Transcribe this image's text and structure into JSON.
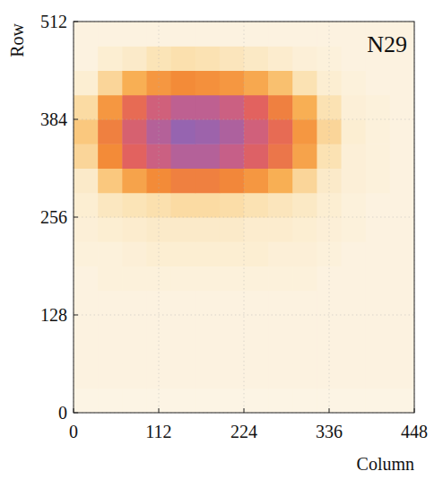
{
  "chart_data": {
    "type": "heatmap",
    "annotation": "N29",
    "xlabel": "Column",
    "ylabel": "Row",
    "xlim": [
      0,
      448
    ],
    "ylim": [
      0,
      512
    ],
    "xticks": [
      0,
      112,
      224,
      336,
      448
    ],
    "yticks": [
      0,
      128,
      256,
      384,
      512
    ],
    "grid": true,
    "x_edges": [
      0,
      32,
      64,
      96,
      128,
      160,
      192,
      224,
      256,
      288,
      320,
      352,
      384,
      416,
      448
    ],
    "y_edges": [
      0,
      32,
      64,
      96,
      128,
      160,
      192,
      224,
      256,
      288,
      320,
      352,
      384,
      416,
      448,
      480,
      512
    ],
    "cells": [
      [
        4,
        4,
        4,
        4,
        4,
        4,
        4,
        4,
        4,
        4,
        4,
        4,
        4,
        4
      ],
      [
        5,
        5,
        5,
        5,
        5,
        5,
        5,
        5,
        5,
        5,
        5,
        5,
        5,
        5
      ],
      [
        5,
        5,
        5,
        5,
        5,
        5,
        5,
        5,
        5,
        5,
        5,
        5,
        5,
        5
      ],
      [
        5,
        5,
        5,
        5,
        5,
        5,
        5,
        5,
        5,
        5,
        5,
        5,
        5,
        5
      ],
      [
        5,
        5,
        5,
        5,
        5,
        5,
        5,
        5,
        5,
        5,
        5,
        5,
        5,
        5
      ],
      [
        5,
        6,
        6,
        6,
        6,
        6,
        6,
        6,
        6,
        6,
        5,
        5,
        5,
        5
      ],
      [
        6,
        6,
        7,
        8,
        8,
        8,
        8,
        8,
        7,
        7,
        6,
        5,
        5,
        5
      ],
      [
        7,
        8,
        9,
        10,
        10,
        10,
        10,
        9,
        9,
        8,
        7,
        6,
        5,
        5
      ],
      [
        8,
        12,
        14,
        16,
        18,
        18,
        17,
        15,
        13,
        11,
        8,
        6,
        5,
        5
      ],
      [
        10,
        25,
        40,
        50,
        55,
        55,
        52,
        45,
        35,
        20,
        10,
        7,
        6,
        5
      ],
      [
        20,
        50,
        70,
        80,
        88,
        88,
        82,
        72,
        60,
        40,
        15,
        7,
        6,
        5
      ],
      [
        25,
        55,
        75,
        88,
        97,
        95,
        90,
        78,
        65,
        45,
        20,
        8,
        6,
        5
      ],
      [
        18,
        45,
        65,
        78,
        85,
        85,
        80,
        70,
        55,
        35,
        15,
        7,
        6,
        5
      ],
      [
        8,
        20,
        35,
        45,
        50,
        48,
        45,
        38,
        28,
        15,
        8,
        6,
        5,
        5
      ],
      [
        5,
        8,
        10,
        14,
        16,
        15,
        13,
        11,
        9,
        7,
        6,
        5,
        5,
        5
      ],
      [
        5,
        5,
        5,
        5,
        5,
        5,
        5,
        5,
        5,
        5,
        5,
        5,
        5,
        5
      ]
    ]
  }
}
